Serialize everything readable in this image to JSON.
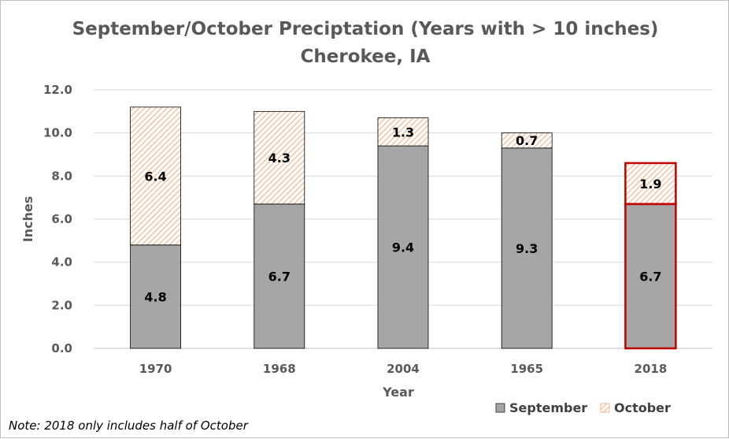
{
  "chart_data": {
    "type": "bar",
    "stacked": true,
    "title": "September/October Preciptation (Years with > 10 inches)",
    "subtitle": "Cherokee, IA",
    "xlabel": "Year",
    "ylabel": "Inches",
    "ylim": [
      0,
      12
    ],
    "yticks": [
      "0.0",
      "2.0",
      "4.0",
      "6.0",
      "8.0",
      "10.0",
      "12.0"
    ],
    "grid": true,
    "categories": [
      "1970",
      "1968",
      "2004",
      "1965",
      "2018"
    ],
    "series": [
      {
        "name": "September",
        "values": [
          4.8,
          6.7,
          9.4,
          9.3,
          6.7
        ],
        "labels": [
          "4.8",
          "6.7",
          "9.4",
          "9.3",
          "6.7"
        ],
        "color": "#a6a6a6"
      },
      {
        "name": "October",
        "values": [
          6.4,
          4.3,
          1.3,
          0.7,
          1.9
        ],
        "labels": [
          "6.4",
          "4.3",
          "1.3",
          "0.7",
          "1.9"
        ],
        "color": "#f4b183"
      }
    ],
    "highlight": {
      "category": "2018",
      "color": "#c00000"
    },
    "legend_position": "bottom-right",
    "note": "Note: 2018 only includes half of October"
  }
}
